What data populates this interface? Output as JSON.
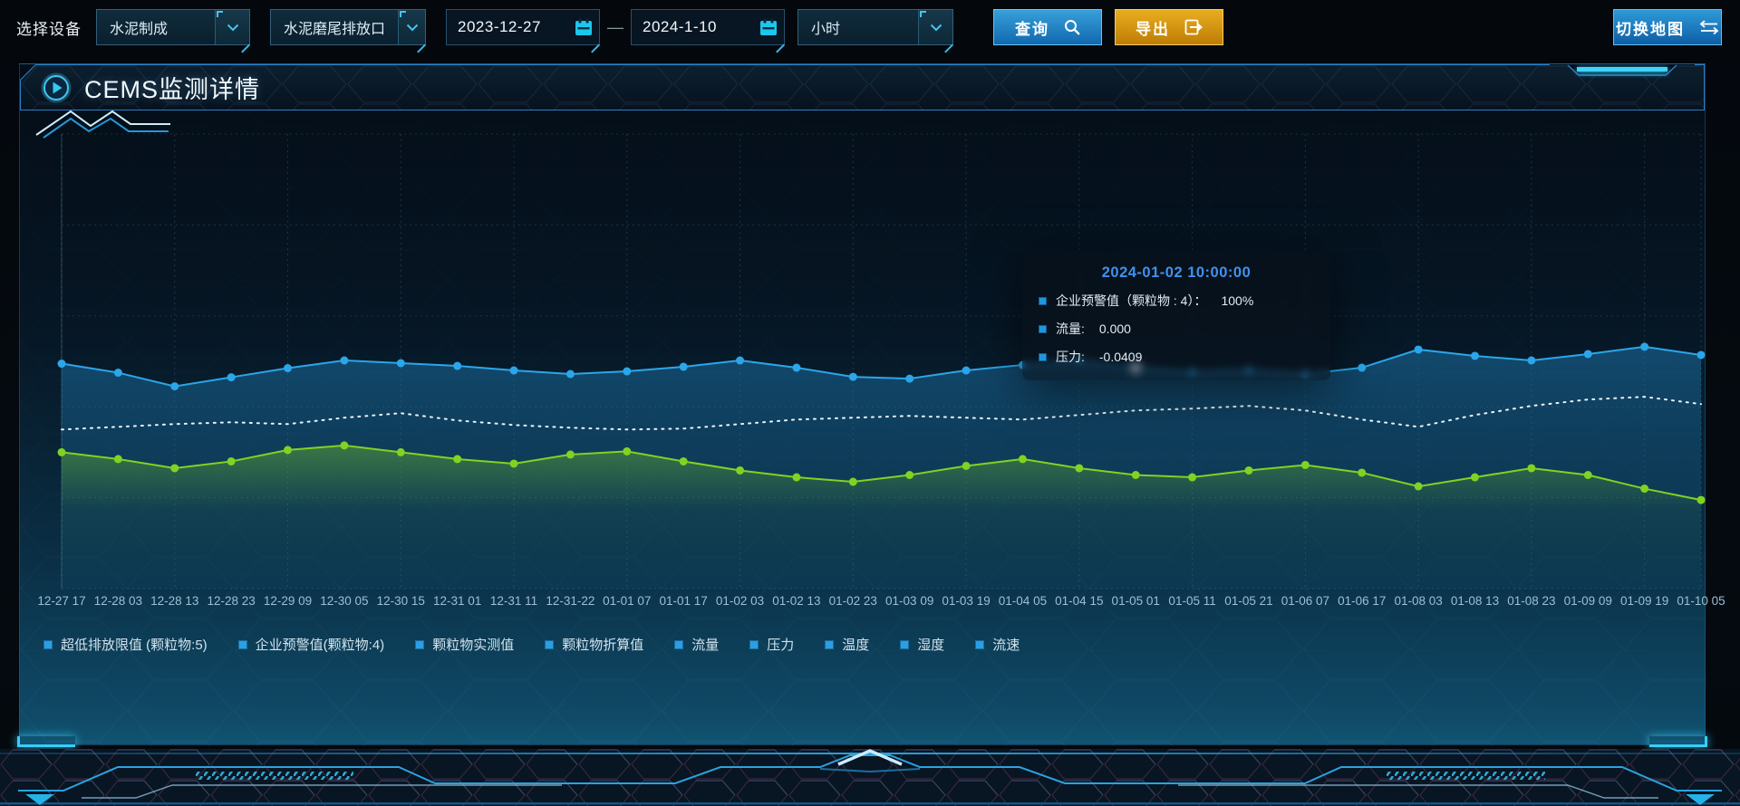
{
  "toolbar": {
    "device_label": "选择设备",
    "select_device_type": "水泥制成",
    "select_outlet": "水泥磨尾排放口",
    "date_start": "2023-12-27",
    "date_separator": "—",
    "date_end": "2024-1-10",
    "select_granularity": "小时",
    "query_label": "查询",
    "export_label": "导出",
    "switch_map_label": "切换地图"
  },
  "panel": {
    "title": "CEMS监测详情"
  },
  "tooltip": {
    "title": "2024-01-02 10:00:00",
    "rows": [
      {
        "label": "企业预警值（颗粒物 : 4）：",
        "value": "100%"
      },
      {
        "label": "流量:",
        "value": "0.000"
      },
      {
        "label": "压力:",
        "value": "-0.0409"
      }
    ]
  },
  "icons": {
    "query": "search-icon",
    "export": "export-arrow-icon",
    "switch_map": "swap-arrows-icon",
    "date": "calendar-icon",
    "selects": "chevron-down-icon",
    "panel_title": "play-icon"
  },
  "colors": {
    "accent_cyan": "#38cdf8",
    "button_blue": "#1e7ec2",
    "button_orange": "#d6920f",
    "tooltip_title_blue": "#3f92ee",
    "series_blue": "#2ba6ea",
    "series_white": "#eaf3f8",
    "series_green": "#7fd322",
    "legend_marker": "#2b9fe0"
  },
  "chart_data": {
    "type": "line",
    "title": "",
    "xlabel": "",
    "ylabel": "",
    "y_axis_visible": false,
    "grid": {
      "shown": true,
      "style": "dashed"
    },
    "legend_position": "bottom",
    "legend": [
      "超低排放限值 (颗粒物:5)",
      "企业预警值(颗粒物:4)",
      "颗粒物实测值",
      "颗粒物折算值",
      "流量",
      "压力",
      "温度",
      "湿度",
      "流速"
    ],
    "x_labels": [
      "12-27 17",
      "12-28 03",
      "12-28 13",
      "12-28 23",
      "12-29 09",
      "12-30 05",
      "12-30 15",
      "12-31 01",
      "12-31 11",
      "12-31-22",
      "01-01 07",
      "01-01 17",
      "01-02 03",
      "01-02 13",
      "01-02 23",
      "01-03 09",
      "01-03 19",
      "01-04 05",
      "01-04 15",
      "01-05 01",
      "01-05 11",
      "01-05 21",
      "01-06 07",
      "01-06 17",
      "01-08 03",
      "01-08 13",
      "01-08 23",
      "01-09 09",
      "01-09 19",
      "01-10 05"
    ],
    "value_note": "no y-axis labels are rendered on screen; series values below are estimated percent of plot height (0 = bottom, 100 = top)",
    "series": [
      {
        "name": "企业预警值(颗粒物:4)",
        "color": "#2ba6ea",
        "line": "solid",
        "markers": true,
        "area": true,
        "values": [
          49.5,
          47.5,
          44.5,
          46.5,
          48.5,
          50.2,
          49.6,
          49.0,
          48.0,
          47.2,
          47.8,
          48.8,
          50.2,
          48.6,
          46.6,
          46.2,
          48.0,
          49.2,
          50.2,
          48.6,
          47.6,
          48.0,
          47.2,
          48.6,
          52.6,
          51.2,
          50.2,
          51.6,
          53.2,
          51.4
        ]
      },
      {
        "name": "流量",
        "color": "#eaf3f8",
        "line": "dotted",
        "markers": false,
        "area": false,
        "values": [
          35.0,
          35.6,
          36.2,
          36.6,
          36.2,
          37.6,
          38.6,
          37.0,
          36.0,
          35.4,
          35.0,
          35.2,
          36.2,
          37.2,
          37.6,
          38.0,
          37.6,
          37.2,
          38.2,
          39.2,
          39.6,
          40.2,
          39.2,
          37.2,
          35.6,
          38.2,
          40.2,
          41.6,
          42.2,
          40.6
        ]
      },
      {
        "name": "压力",
        "color": "#7fd322",
        "line": "solid",
        "markers": true,
        "area": true,
        "values": [
          30.0,
          28.5,
          26.5,
          28.0,
          30.5,
          31.5,
          30.0,
          28.5,
          27.5,
          29.5,
          30.2,
          28.0,
          26.0,
          24.5,
          23.5,
          25.0,
          27.0,
          28.5,
          26.5,
          25.0,
          24.5,
          26.0,
          27.2,
          25.5,
          22.5,
          24.5,
          26.5,
          25.0,
          22.0,
          19.5
        ]
      }
    ],
    "highlight_point": {
      "series_index": 0,
      "index": 19
    }
  }
}
